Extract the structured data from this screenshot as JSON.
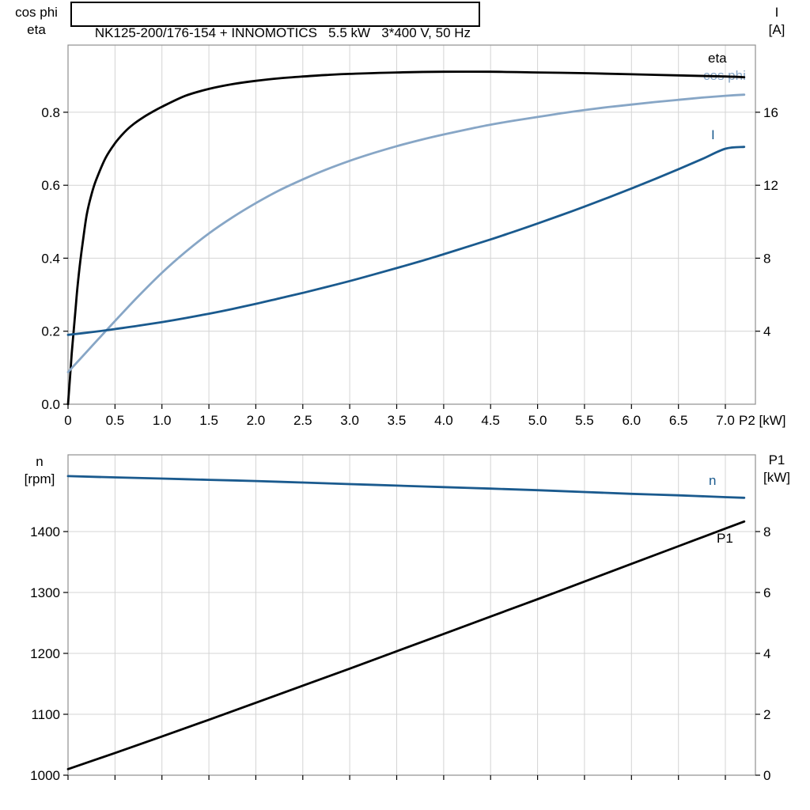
{
  "title": {
    "text": "NK125-200/176-154 + INNOMOTICS   5.5 kW   3*400 V, 50 Hz"
  },
  "colors": {
    "eta_curve": "#000000",
    "cos_phi_curve": "#87a6c6",
    "current_curve": "#1a5a8e",
    "speed_curve": "#1a5a8e",
    "p1_curve": "#000000",
    "grid": "#d4d4d4",
    "frame": "#8f8f8f",
    "tick": "#000000",
    "text": "#000000",
    "background": "#ffffff"
  },
  "chart_data": [
    {
      "type": "line",
      "panel": "motor-efficiency-current",
      "title": "NK125-200/176-154 + INNOMOTICS 5.5 kW 3*400 V, 50 Hz",
      "xlabel": "P2 [kW]",
      "xlim": [
        0,
        7.32
      ],
      "x_ticks": [
        0,
        0.5,
        1,
        1.5,
        2,
        2.5,
        3,
        3.5,
        4,
        4.5,
        5,
        5.5,
        6,
        6.5,
        7
      ],
      "x_tick_labels": [
        "0",
        "0.5",
        "1.0",
        "1.5",
        "2.0",
        "2.5",
        "3.0",
        "3.5",
        "4.0",
        "4.5",
        "5.0",
        "5.5",
        "6.0",
        "6.5",
        "7.0"
      ],
      "grid": true,
      "left_axis": {
        "label_lines": [
          "cos phi",
          "eta"
        ],
        "lim": [
          0,
          0.984
        ],
        "ticks": [
          0,
          0.2,
          0.4,
          0.6,
          0.8
        ],
        "tick_labels": [
          "0.0",
          "0.2",
          "0.4",
          "0.6",
          "0.8"
        ]
      },
      "right_axis": {
        "label_lines": [
          "I",
          "[A]"
        ],
        "lim": [
          0,
          19.68
        ],
        "ticks": [
          4,
          8,
          12,
          16
        ],
        "tick_labels": [
          "4",
          "8",
          "12",
          "16"
        ]
      },
      "series": [
        {
          "id": "eta",
          "label": "eta",
          "axis": "left",
          "color": "#000000",
          "width": 2.8,
          "points": [
            [
              0,
              0
            ],
            [
              0.02,
              0.07
            ],
            [
              0.04,
              0.14
            ],
            [
              0.06,
              0.2
            ],
            [
              0.08,
              0.26
            ],
            [
              0.1,
              0.32
            ],
            [
              0.13,
              0.39
            ],
            [
              0.16,
              0.45
            ],
            [
              0.2,
              0.52
            ],
            [
              0.25,
              0.575
            ],
            [
              0.3,
              0.615
            ],
            [
              0.4,
              0.675
            ],
            [
              0.5,
              0.715
            ],
            [
              0.6,
              0.745
            ],
            [
              0.7,
              0.768
            ],
            [
              0.8,
              0.786
            ],
            [
              0.9,
              0.801
            ],
            [
              1,
              0.815
            ],
            [
              1.25,
              0.845
            ],
            [
              1.5,
              0.864
            ],
            [
              1.75,
              0.877
            ],
            [
              2,
              0.886
            ],
            [
              2.25,
              0.893
            ],
            [
              2.5,
              0.898
            ],
            [
              2.75,
              0.902
            ],
            [
              3,
              0.905
            ],
            [
              3.5,
              0.909
            ],
            [
              4,
              0.911
            ],
            [
              4.5,
              0.911
            ],
            [
              5,
              0.909
            ],
            [
              5.5,
              0.907
            ],
            [
              6,
              0.904
            ],
            [
              6.5,
              0.901
            ],
            [
              7,
              0.898
            ],
            [
              7.2,
              0.896
            ]
          ]
        },
        {
          "id": "cos-phi",
          "label": "cos phi",
          "axis": "left",
          "color": "#87a6c6",
          "width": 2.8,
          "points": [
            [
              0,
              0.088
            ],
            [
              0.25,
              0.158
            ],
            [
              0.5,
              0.228
            ],
            [
              0.75,
              0.296
            ],
            [
              1,
              0.36
            ],
            [
              1.25,
              0.417
            ],
            [
              1.5,
              0.468
            ],
            [
              1.75,
              0.512
            ],
            [
              2,
              0.551
            ],
            [
              2.25,
              0.586
            ],
            [
              2.5,
              0.616
            ],
            [
              2.75,
              0.643
            ],
            [
              3,
              0.667
            ],
            [
              3.25,
              0.688
            ],
            [
              3.5,
              0.707
            ],
            [
              3.75,
              0.724
            ],
            [
              4,
              0.739
            ],
            [
              4.25,
              0.753
            ],
            [
              4.5,
              0.766
            ],
            [
              4.75,
              0.777
            ],
            [
              5,
              0.787
            ],
            [
              5.25,
              0.797
            ],
            [
              5.5,
              0.806
            ],
            [
              5.75,
              0.814
            ],
            [
              6,
              0.821
            ],
            [
              6.25,
              0.828
            ],
            [
              6.5,
              0.834
            ],
            [
              6.75,
              0.84
            ],
            [
              7,
              0.845
            ],
            [
              7.2,
              0.848
            ]
          ]
        },
        {
          "id": "current",
          "label": "I",
          "axis": "right",
          "color": "#1a5a8e",
          "width": 2.8,
          "points": [
            [
              0,
              3.8
            ],
            [
              0.25,
              3.95
            ],
            [
              0.5,
              4.12
            ],
            [
              0.75,
              4.3
            ],
            [
              1,
              4.5
            ],
            [
              1.25,
              4.72
            ],
            [
              1.5,
              4.96
            ],
            [
              1.75,
              5.22
            ],
            [
              2,
              5.5
            ],
            [
              2.25,
              5.8
            ],
            [
              2.5,
              6.1
            ],
            [
              2.75,
              6.42
            ],
            [
              3,
              6.75
            ],
            [
              3.25,
              7.1
            ],
            [
              3.5,
              7.46
            ],
            [
              3.75,
              7.83
            ],
            [
              4,
              8.22
            ],
            [
              4.25,
              8.62
            ],
            [
              4.5,
              9.03
            ],
            [
              4.75,
              9.46
            ],
            [
              5,
              9.9
            ],
            [
              5.25,
              10.36
            ],
            [
              5.5,
              10.83
            ],
            [
              5.75,
              11.32
            ],
            [
              6,
              11.82
            ],
            [
              6.25,
              12.34
            ],
            [
              6.5,
              12.88
            ],
            [
              6.75,
              13.43
            ],
            [
              7,
              14
            ],
            [
              7.2,
              14.1
            ]
          ]
        }
      ]
    },
    {
      "type": "line",
      "panel": "speed-input-power",
      "xlabel": "",
      "xlim": [
        0,
        7.32
      ],
      "x_ticks": [
        0,
        0.5,
        1,
        1.5,
        2,
        2.5,
        3,
        3.5,
        4,
        4.5,
        5,
        5.5,
        6,
        6.5,
        7
      ],
      "x_tick_labels": null,
      "grid": true,
      "left_axis": {
        "label_lines": [
          "n",
          "[rpm]"
        ],
        "lim": [
          1000,
          1526
        ],
        "ticks": [
          1000,
          1100,
          1200,
          1300,
          1400
        ],
        "tick_labels": [
          "1000",
          "1100",
          "1200",
          "1300",
          "1400"
        ]
      },
      "right_axis": {
        "label_lines": [
          "P1",
          "[kW]"
        ],
        "lim": [
          0,
          10.52
        ],
        "ticks": [
          0,
          2,
          4,
          6,
          8
        ],
        "tick_labels": [
          "0",
          "2",
          "4",
          "6",
          "8"
        ]
      },
      "series": [
        {
          "id": "speed",
          "label": "n",
          "axis": "left",
          "color": "#1a5a8e",
          "width": 2.8,
          "points": [
            [
              0,
              1491
            ],
            [
              0.5,
              1489
            ],
            [
              1,
              1487
            ],
            [
              1.5,
              1485
            ],
            [
              2,
              1483
            ],
            [
              2.5,
              1480.5
            ],
            [
              3,
              1478
            ],
            [
              3.5,
              1475.5
            ],
            [
              4,
              1473
            ],
            [
              4.5,
              1470.5
            ],
            [
              5,
              1468
            ],
            [
              5.5,
              1465
            ],
            [
              6,
              1462
            ],
            [
              6.5,
              1459.5
            ],
            [
              7,
              1456.5
            ],
            [
              7.2,
              1455.5
            ]
          ]
        },
        {
          "id": "p1",
          "label": "P1",
          "axis": "right",
          "color": "#000000",
          "width": 2.8,
          "points": [
            [
              0,
              0.2
            ],
            [
              0.5,
              0.73
            ],
            [
              1,
              1.27
            ],
            [
              1.5,
              1.82
            ],
            [
              2,
              2.38
            ],
            [
              2.5,
              2.94
            ],
            [
              3,
              3.5
            ],
            [
              3.5,
              4.07
            ],
            [
              4,
              4.64
            ],
            [
              4.5,
              5.21
            ],
            [
              5,
              5.78
            ],
            [
              5.5,
              6.36
            ],
            [
              6,
              6.94
            ],
            [
              6.5,
              7.52
            ],
            [
              7,
              8.1
            ],
            [
              7.2,
              8.33
            ]
          ]
        }
      ]
    }
  ]
}
